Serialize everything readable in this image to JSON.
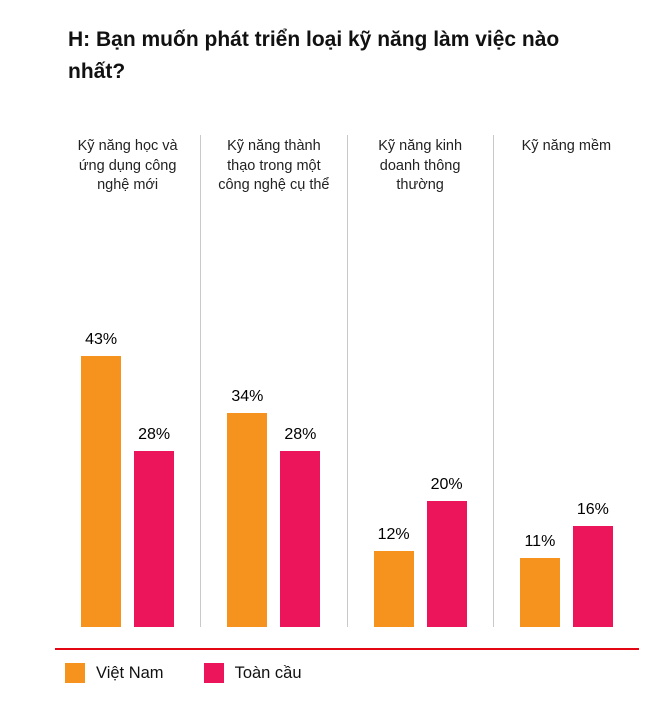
{
  "title": "H: Bạn muốn phát triển loại kỹ năng làm việc nào nhất?",
  "chart_data": {
    "type": "bar",
    "title": "H: Bạn muốn phát triển loại kỹ năng làm việc nào nhất?",
    "categories": [
      "Kỹ năng học và ứng dụng công nghệ mới",
      "Kỹ năng thành thạo trong một công nghệ cụ thể",
      "Kỹ năng kinh doanh thông thường",
      "Kỹ năng mềm"
    ],
    "series": [
      {
        "name": "Việt Nam",
        "key": "viet-nam",
        "color": "#F6921E",
        "values": [
          43,
          34,
          12,
          11
        ]
      },
      {
        "name": "Toàn cầu",
        "key": "toan-cau",
        "color": "#EC145A",
        "values": [
          28,
          28,
          20,
          16
        ]
      }
    ],
    "value_suffix": "%",
    "ylim": [
      0,
      45
    ],
    "grid": false,
    "column_dividers": true,
    "legend_position": "bottom",
    "accent_line_color": "#e30613"
  }
}
